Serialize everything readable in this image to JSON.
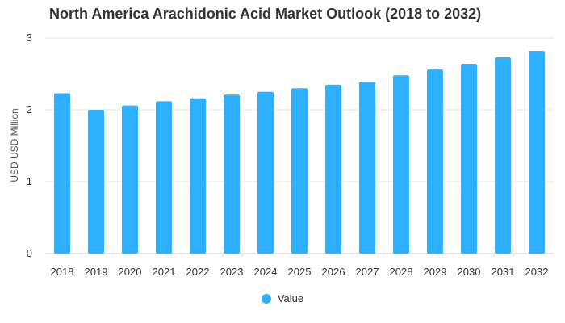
{
  "chart_data": {
    "type": "bar",
    "title": "North America Arachidonic Acid Market Outlook (2018 to 2032)",
    "ylabel": "USD USD Million",
    "xlabel": "",
    "categories": [
      "2018",
      "2019",
      "2020",
      "2021",
      "2022",
      "2023",
      "2024",
      "2025",
      "2026",
      "2027",
      "2028",
      "2029",
      "2030",
      "2031",
      "2032"
    ],
    "series": [
      {
        "name": "Value",
        "values": [
          2.23,
          2.0,
          2.06,
          2.12,
          2.16,
          2.21,
          2.25,
          2.3,
          2.35,
          2.39,
          2.48,
          2.56,
          2.64,
          2.73,
          2.82
        ],
        "color": "#2eb0ff"
      }
    ],
    "ylim": [
      0,
      3
    ],
    "yticks": [
      0,
      1,
      2,
      3
    ],
    "grid": true,
    "legend_position": "bottom"
  }
}
